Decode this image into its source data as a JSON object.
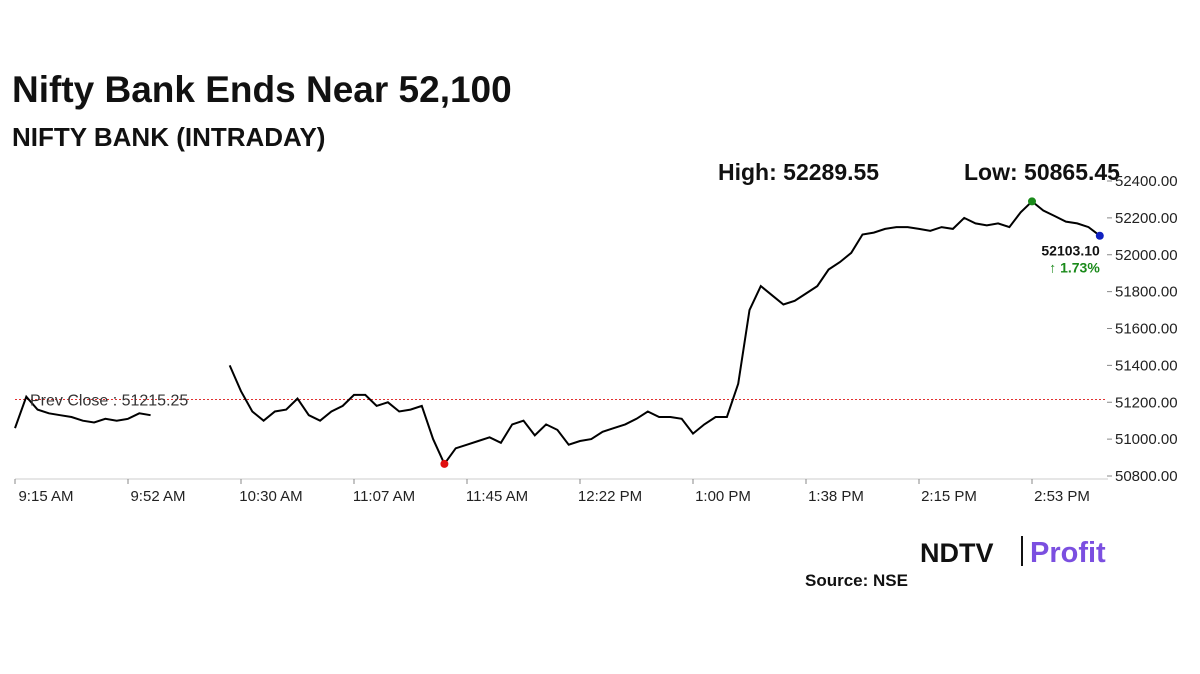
{
  "chart_data": {
    "type": "line",
    "title": "Nifty Bank Ends Near 52,100",
    "subtitle": "NIFTY BANK (INTRADAY)",
    "high": {
      "value": 52289.55,
      "label": "High: 52289.55"
    },
    "low": {
      "value": 50865.45,
      "label": "Low: 50865.45"
    },
    "prev_close": {
      "value": 51215.25,
      "label": "Prev Close : 51215.25"
    },
    "last_label": "52103.10",
    "change_label": "↑ 1.73%",
    "categories": [
      "9:15 AM",
      null,
      null,
      null,
      null,
      null,
      null,
      null,
      null,
      null,
      "9:52 AM",
      null,
      null,
      null,
      null,
      null,
      null,
      null,
      null,
      null,
      "10:30 AM",
      null,
      null,
      null,
      null,
      null,
      null,
      null,
      null,
      null,
      "11:07 AM",
      null,
      null,
      null,
      null,
      null,
      null,
      null,
      null,
      null,
      "11:45 AM",
      null,
      null,
      null,
      null,
      null,
      null,
      null,
      null,
      null,
      "12:22 PM",
      null,
      null,
      null,
      null,
      null,
      null,
      null,
      null,
      null,
      "1:00 PM",
      null,
      null,
      null,
      null,
      null,
      null,
      null,
      null,
      null,
      "1:38 PM",
      null,
      null,
      null,
      null,
      null,
      null,
      null,
      null,
      null,
      "2:15 PM",
      null,
      null,
      null,
      null,
      null,
      null,
      null,
      null,
      null,
      "2:53 PM",
      null,
      null,
      null,
      null,
      null,
      null
    ],
    "series": [
      {
        "name": "NIFTY BANK",
        "color": "#000000",
        "values": [
          51060,
          51230,
          51160,
          51140,
          51130,
          51120,
          51100,
          51090,
          51110,
          51100,
          51110,
          51140,
          51130,
          null,
          null,
          null,
          null,
          null,
          null,
          51400,
          51260,
          51150,
          51100,
          51150,
          51160,
          51220,
          51130,
          51100,
          51150,
          51180,
          51240,
          51240,
          51180,
          51200,
          51150,
          51160,
          51180,
          51000,
          50865.45,
          50950,
          50970,
          50990,
          51010,
          50980,
          51080,
          51100,
          51020,
          51080,
          51050,
          50970,
          50990,
          51000,
          51040,
          51060,
          51080,
          51110,
          51150,
          51120,
          51120,
          51110,
          51030,
          51080,
          51120,
          51120,
          51300,
          51700,
          51830,
          51780,
          51730,
          51750,
          51790,
          51830,
          51920,
          51960,
          52010,
          52110,
          52120,
          52140,
          52150,
          52150,
          52140,
          52130,
          52150,
          52140,
          52200,
          52170,
          52160,
          52170,
          52150,
          52230,
          52289.55,
          52240,
          52210,
          52180,
          52170,
          52150,
          52103.1
        ]
      }
    ],
    "high_color": "#1a8a1a",
    "low_color": "#e01010",
    "last_color": "#1020c0",
    "prev_close_color": "#e03030",
    "ylim": [
      50800,
      52400
    ],
    "yticks": [
      {
        "value": 50800,
        "label": "50800.00"
      },
      {
        "value": 51000,
        "label": "51000.00"
      },
      {
        "value": 51200,
        "label": "51200.00"
      },
      {
        "value": 51400,
        "label": "51400.00"
      },
      {
        "value": 51600,
        "label": "51600.00"
      },
      {
        "value": 51800,
        "label": "51800.00"
      },
      {
        "value": 52000,
        "label": "52000.00"
      },
      {
        "value": 52200,
        "label": "52200.00"
      },
      {
        "value": 52400,
        "label": "52400.00"
      }
    ],
    "source": "Source: NSE",
    "logo": [
      "NDTV",
      "Profit"
    ]
  }
}
